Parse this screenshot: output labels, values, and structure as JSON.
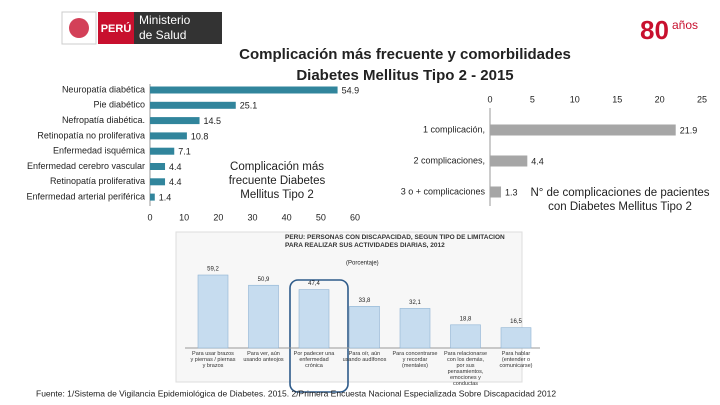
{
  "header": {
    "brand": "PERÚ",
    "ministry": [
      "Ministerio",
      "de Salud"
    ],
    "anniversary": [
      "80",
      "años"
    ]
  },
  "title": [
    "Complicación más frecuente y comorbilidades",
    "Diabetes Mellitus Tipo 2  - 2015"
  ],
  "chart_data": [
    {
      "type": "bar",
      "horizontal": true,
      "color": "#31859c",
      "annotation": "Complicación más frecuente Diabetes Mellitus Tipo 2",
      "categories": [
        "Neuropatía diabética",
        "Pie diabético",
        "Nefropatía diabética.",
        "Retinopatía no proliferativa",
        "Enfermedad isquémica",
        "Enfermedad cerebro vascular",
        "Retinopatía proliferativa",
        "Enfermedad arterial periférica"
      ],
      "values": [
        54.9,
        25.1,
        14.5,
        10.8,
        7.1,
        4.4,
        4.4,
        1.4
      ],
      "xlim": [
        0,
        60
      ],
      "xticks": [
        0,
        10,
        20,
        30,
        40,
        50,
        60
      ]
    },
    {
      "type": "bar",
      "horizontal": true,
      "color": "#a6a6a6",
      "annotation": "N° de complicaciones de pacientes con Diabetes Mellitus Tipo 2",
      "categories": [
        "1 complicación,",
        "2 complicaciones,",
        "3 o + complicaciones"
      ],
      "values": [
        21.9,
        4.4,
        1.3
      ],
      "xlim": [
        0,
        25
      ],
      "xticks": [
        0,
        5,
        10,
        15,
        20,
        25
      ]
    },
    {
      "type": "bar",
      "horizontal": false,
      "color": "#c6dcef",
      "title": "PERÚ: PERSONAS CON DISCAPACIDAD, SEGÚN TIPO DE LIMITACIÓN PARA REALIZAR SUS ACTIVIDADES DIARIAS, 2012",
      "subtitle": "(Porcentaje)",
      "categories": [
        "Para usar brazos y piernas / piernas y brazos",
        "Para ver, aún usando anteojos",
        "Por padecer una enfermedad crónica",
        "Para oír, aún usando audífonos",
        "Para concentrarse y recordar (mentales)",
        "Para relacionarse con los demás, por sus pensamientos, emociones y conductas",
        "Para hablar (entender o comunicarse)"
      ],
      "values": [
        59.2,
        50.9,
        47.4,
        33.8,
        32.1,
        18.8,
        16.5
      ],
      "value_labels": [
        "59,2",
        "50,9",
        "47,4",
        "33,8",
        "32,1",
        "18,8",
        "16,5"
      ]
    }
  ],
  "footer": "Fuente: 1/Sistema de Vigilancia Epidemiológica de Diabetes. 2015. 2/Primera Encuesta Nacional Especializada Sobre Discapacidad 2012"
}
